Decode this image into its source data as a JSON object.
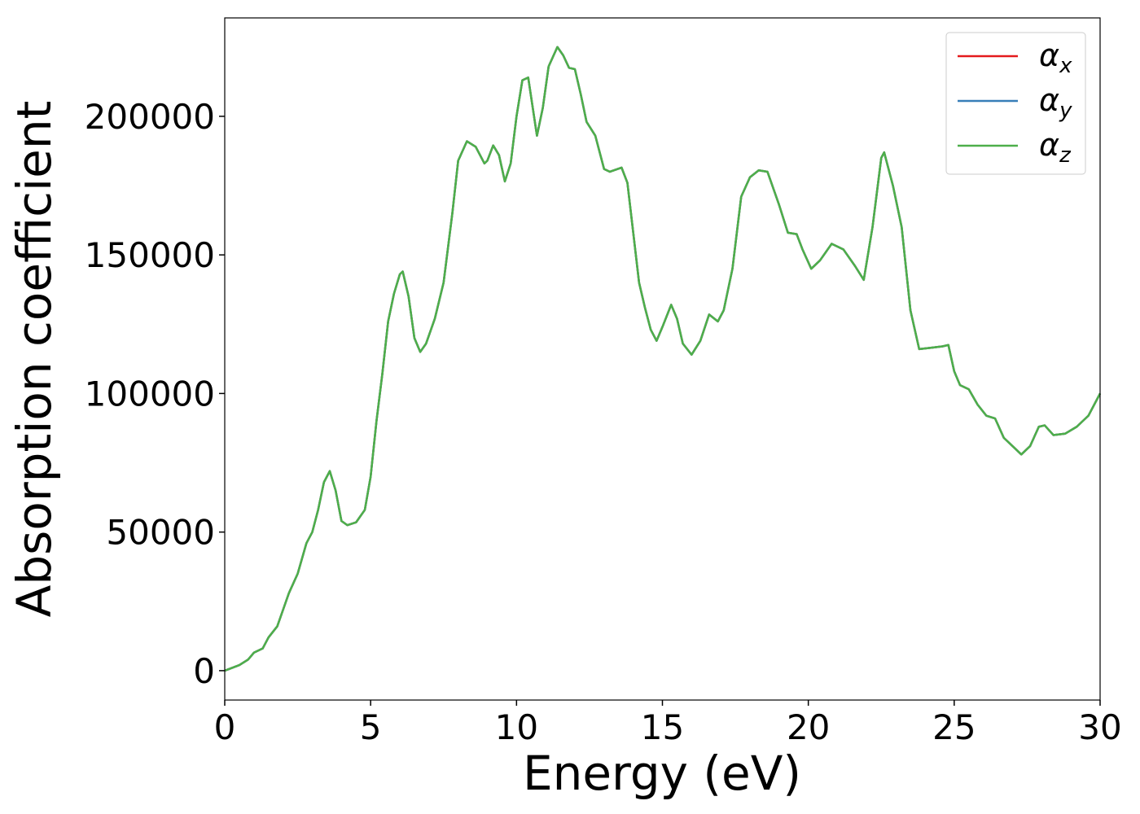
{
  "chart_data": {
    "type": "line",
    "xlabel": "Energy (eV)",
    "ylabel": "Absorption coefficient",
    "x": [
      0,
      0.5,
      0.8,
      1.0,
      1.3,
      1.5,
      1.8,
      2.0,
      2.2,
      2.5,
      2.8,
      3.0,
      3.2,
      3.4,
      3.6,
      3.8,
      4.0,
      4.2,
      4.5,
      4.8,
      5.0,
      5.2,
      5.4,
      5.6,
      5.8,
      6.0,
      6.1,
      6.3,
      6.5,
      6.7,
      6.9,
      7.2,
      7.5,
      7.8,
      8.0,
      8.3,
      8.6,
      8.9,
      9.0,
      9.2,
      9.4,
      9.6,
      9.8,
      10.0,
      10.2,
      10.4,
      10.6,
      10.7,
      10.9,
      11.1,
      11.4,
      11.6,
      11.8,
      12.0,
      12.2,
      12.4,
      12.7,
      13.0,
      13.2,
      13.6,
      13.8,
      14.0,
      14.2,
      14.4,
      14.6,
      14.8,
      15.0,
      15.3,
      15.5,
      15.7,
      16.0,
      16.3,
      16.6,
      16.9,
      17.1,
      17.4,
      17.7,
      18.0,
      18.3,
      18.6,
      19.0,
      19.3,
      19.6,
      19.8,
      20.1,
      20.4,
      20.8,
      21.2,
      21.6,
      21.9,
      22.2,
      22.5,
      22.6,
      22.9,
      23.2,
      23.5,
      23.8,
      24.2,
      24.6,
      24.8,
      25.0,
      25.2,
      25.5,
      25.8,
      26.1,
      26.4,
      26.7,
      27.0,
      27.3,
      27.6,
      27.9,
      28.1,
      28.4,
      28.8,
      29.2,
      29.6,
      30.0
    ],
    "series": [
      {
        "name": "αx",
        "color": "#e41a1c",
        "values": [
          0,
          2000,
          4000,
          6500,
          8000,
          12000,
          16000,
          22000,
          28000,
          35000,
          46000,
          50000,
          58000,
          68000,
          72000,
          65000,
          54000,
          52500,
          53500,
          58000,
          70000,
          90000,
          107000,
          126000,
          136000,
          143000,
          144000,
          135000,
          120000,
          115000,
          118000,
          127000,
          140000,
          165000,
          184000,
          191000,
          189000,
          183000,
          184000,
          189500,
          186000,
          176500,
          183000,
          200000,
          213000,
          214000,
          200000,
          193000,
          203000,
          218000,
          225000,
          222000,
          217500,
          217000,
          208000,
          198000,
          193000,
          181000,
          180000,
          181500,
          176000,
          158000,
          140000,
          131000,
          123000,
          119000,
          124000,
          132000,
          127000,
          118000,
          114000,
          119000,
          128500,
          126000,
          130000,
          145000,
          171000,
          178000,
          180500,
          180000,
          168000,
          158000,
          157500,
          152000,
          145000,
          148000,
          154000,
          152000,
          146000,
          141000,
          160000,
          185000,
          187000,
          175000,
          160000,
          130000,
          116000,
          116500,
          117000,
          117500,
          108000,
          103000,
          101500,
          96000,
          92000,
          91000,
          84000,
          81000,
          78000,
          81000,
          88000,
          88500,
          85000,
          85500,
          88000,
          92000,
          100000
        ]
      },
      {
        "name": "αy",
        "color": "#377eb8",
        "values": [
          0,
          2000,
          4000,
          6500,
          8000,
          12000,
          16000,
          22000,
          28000,
          35000,
          46000,
          50000,
          58000,
          68000,
          72000,
          65000,
          54000,
          52500,
          53500,
          58000,
          70000,
          90000,
          107000,
          126000,
          136000,
          143000,
          144000,
          135000,
          120000,
          115000,
          118000,
          127000,
          140000,
          165000,
          184000,
          191000,
          189000,
          183000,
          184000,
          189500,
          186000,
          176500,
          183000,
          200000,
          213000,
          214000,
          200000,
          193000,
          203000,
          218000,
          225000,
          222000,
          217500,
          217000,
          208000,
          198000,
          193000,
          181000,
          180000,
          181500,
          176000,
          158000,
          140000,
          131000,
          123000,
          119000,
          124000,
          132000,
          127000,
          118000,
          114000,
          119000,
          128500,
          126000,
          130000,
          145000,
          171000,
          178000,
          180500,
          180000,
          168000,
          158000,
          157500,
          152000,
          145000,
          148000,
          154000,
          152000,
          146000,
          141000,
          160000,
          185000,
          187000,
          175000,
          160000,
          130000,
          116000,
          116500,
          117000,
          117500,
          108000,
          103000,
          101500,
          96000,
          92000,
          91000,
          84000,
          81000,
          78000,
          81000,
          88000,
          88500,
          85000,
          85500,
          88000,
          92000,
          100000
        ]
      },
      {
        "name": "αz",
        "color": "#4daf4a",
        "values": [
          0,
          2000,
          4000,
          6500,
          8000,
          12000,
          16000,
          22000,
          28000,
          35000,
          46000,
          50000,
          58000,
          68000,
          72000,
          65000,
          54000,
          52500,
          53500,
          58000,
          70000,
          90000,
          107000,
          126000,
          136000,
          143000,
          144000,
          135000,
          120000,
          115000,
          118000,
          127000,
          140000,
          165000,
          184000,
          191000,
          189000,
          183000,
          184000,
          189500,
          186000,
          176500,
          183000,
          200000,
          213000,
          214000,
          200000,
          193000,
          203000,
          218000,
          225000,
          222000,
          217500,
          217000,
          208000,
          198000,
          193000,
          181000,
          180000,
          181500,
          176000,
          158000,
          140000,
          131000,
          123000,
          119000,
          124000,
          132000,
          127000,
          118000,
          114000,
          119000,
          128500,
          126000,
          130000,
          145000,
          171000,
          178000,
          180500,
          180000,
          168000,
          158000,
          157500,
          152000,
          145000,
          148000,
          154000,
          152000,
          146000,
          141000,
          160000,
          185000,
          187000,
          175000,
          160000,
          130000,
          116000,
          116500,
          117000,
          117500,
          108000,
          103000,
          101500,
          96000,
          92000,
          91000,
          84000,
          81000,
          78000,
          81000,
          88000,
          88500,
          85000,
          85500,
          88000,
          92000,
          100000
        ]
      }
    ],
    "xlim": [
      0,
      30
    ],
    "xticks": [
      0,
      5,
      10,
      15,
      20,
      25,
      30
    ],
    "ylim": [
      -10600,
      235500
    ],
    "yticks": [
      0,
      50000,
      100000,
      150000,
      200000
    ],
    "legend": "upper right",
    "grid": false
  }
}
